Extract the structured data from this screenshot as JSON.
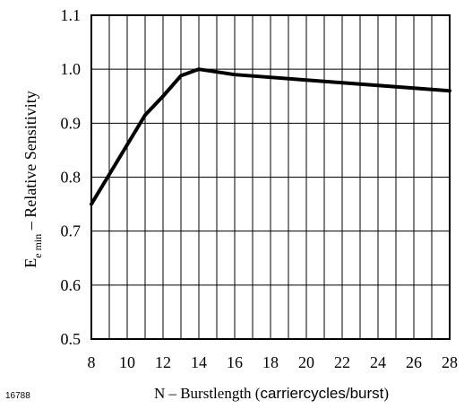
{
  "figure_number": "16788",
  "chart_data": {
    "type": "line",
    "xlabel_main": "N – Burstlength (",
    "xlabel_units": "carriercycles/burst",
    "xlabel_close": ")",
    "ylabel_symbol": "E",
    "ylabel_subscript": "e min",
    "ylabel_rest": "  –  Relative Sensitivity",
    "xlim": [
      8,
      28
    ],
    "ylim": [
      0.5,
      1.1
    ],
    "xticks": [
      8,
      10,
      12,
      14,
      16,
      18,
      20,
      22,
      24,
      26,
      28
    ],
    "xtick_labels": [
      "8",
      "10",
      "12",
      "14",
      "16",
      "18",
      "20",
      "22",
      "24",
      "26",
      "28"
    ],
    "yticks": [
      0.5,
      0.6,
      0.7,
      0.8,
      0.9,
      1.0,
      1.1
    ],
    "ytick_labels": [
      "0.5",
      "0.6",
      "0.7",
      "0.8",
      "0.9",
      "1.0",
      "1.1"
    ],
    "x_gridlines": [
      8,
      9,
      10,
      11,
      12,
      13,
      14,
      15,
      16,
      17,
      18,
      19,
      20,
      21,
      22,
      23,
      24,
      25,
      26,
      27,
      28
    ],
    "grid": true,
    "series": [
      {
        "x": [
          8,
          9,
          10,
          11,
          12,
          13,
          14,
          15,
          16,
          18,
          20,
          22,
          24,
          26,
          28
        ],
        "y": [
          0.75,
          0.805,
          0.86,
          0.915,
          0.95,
          0.988,
          1.0,
          0.995,
          0.99,
          0.985,
          0.98,
          0.975,
          0.97,
          0.965,
          0.96
        ]
      }
    ]
  }
}
